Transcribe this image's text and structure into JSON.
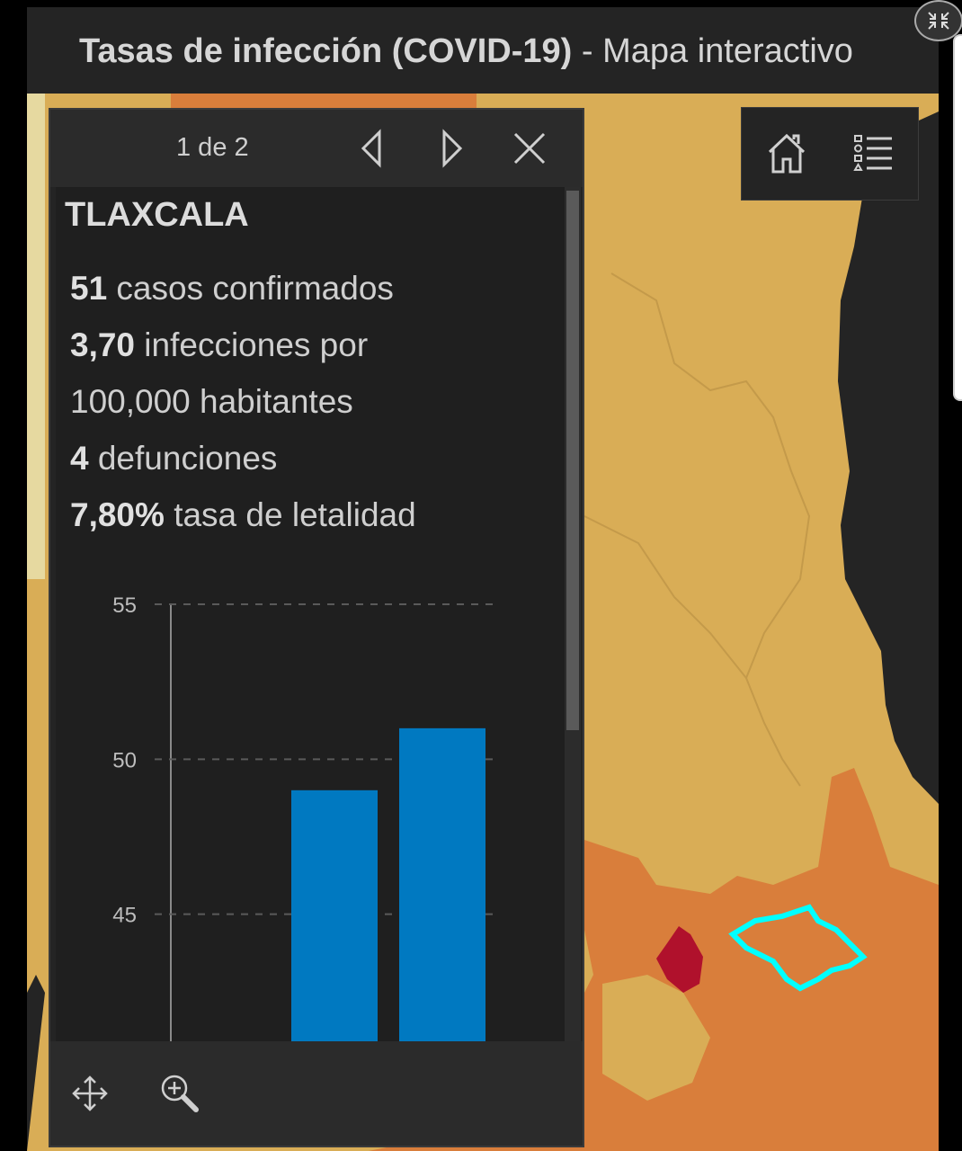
{
  "header": {
    "title_bold": "Tasas de infección (COVID-19)",
    "title_rest": " - Mapa interactivo"
  },
  "map_tools": {
    "home_icon": "home-icon",
    "legend_icon": "legend-list-icon",
    "expand_icon": "collapse-arrows-icon"
  },
  "popup": {
    "pager": "1 de 2",
    "prev_icon": "triangle-left-icon",
    "next_icon": "triangle-right-icon",
    "close_icon": "close-icon",
    "state_name": "TLAXCALA",
    "stats": [
      {
        "value": "51",
        "text": " casos confirmados"
      },
      {
        "value": "3,70",
        "text": " infecciones por"
      },
      {
        "value": "",
        "text": "100,000 habitantes"
      },
      {
        "value": "4",
        "text": " defunciones"
      },
      {
        "value": "7,80%",
        "text": " tasa de letalidad"
      }
    ],
    "footer": {
      "pan_icon": "move-arrows-icon",
      "zoom_icon": "zoom-in-icon"
    }
  },
  "chart_data": {
    "type": "bar",
    "categories": [
      "",
      ""
    ],
    "values": [
      49,
      51
    ],
    "y_ticks": [
      "55",
      "50",
      "45"
    ],
    "ylim": [
      40.9,
      55
    ],
    "bar_color": "#0079c1",
    "grid": true
  },
  "colors": {
    "map_base": "#d9ad56",
    "map_orange": "#d97e3b",
    "map_red": "#b0112c",
    "highlight": "#00ffff",
    "ocean": "#242424",
    "pale": "#e6d9a0"
  }
}
